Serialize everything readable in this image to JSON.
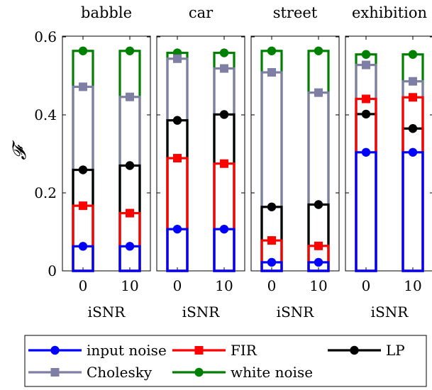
{
  "chart_data": {
    "type": "bar",
    "style": "stacked-outline-bars-with-markers",
    "ylabel": "𝓕",
    "ylim": [
      0,
      0.6
    ],
    "yticks": [
      "0",
      "0.2",
      "0.4",
      "0.6"
    ],
    "series_order": [
      "input noise",
      "FIR",
      "LP",
      "Cholesky",
      "white noise"
    ],
    "series": [
      {
        "name": "input noise",
        "color": "#0000ff",
        "marker": "circle"
      },
      {
        "name": "FIR",
        "color": "#ff0000",
        "marker": "square"
      },
      {
        "name": "LP",
        "color": "#000000",
        "marker": "circle"
      },
      {
        "name": "Cholesky",
        "color": "#7f7fa6",
        "marker": "square"
      },
      {
        "name": "white noise",
        "color": "#008000",
        "marker": "circle"
      }
    ],
    "panels": [
      {
        "title": "babble",
        "xlabel": "iSNR",
        "categories": [
          "0",
          "10"
        ],
        "values": {
          "input noise": [
            0.063,
            0.063
          ],
          "FIR": [
            0.167,
            0.148
          ],
          "LP": [
            0.259,
            0.27
          ],
          "Cholesky": [
            0.472,
            0.446
          ],
          "white noise": [
            0.564,
            0.564
          ]
        }
      },
      {
        "title": "car",
        "xlabel": "iSNR",
        "categories": [
          "0",
          "10"
        ],
        "values": {
          "input noise": [
            0.107,
            0.107
          ],
          "FIR": [
            0.289,
            0.275
          ],
          "LP": [
            0.386,
            0.401
          ],
          "Cholesky": [
            0.544,
            0.519
          ],
          "white noise": [
            0.559,
            0.559
          ]
        }
      },
      {
        "title": "street",
        "xlabel": "iSNR",
        "categories": [
          "0",
          "10"
        ],
        "values": {
          "input noise": [
            0.022,
            0.022
          ],
          "FIR": [
            0.078,
            0.064
          ],
          "LP": [
            0.164,
            0.17
          ],
          "Cholesky": [
            0.509,
            0.457
          ],
          "white noise": [
            0.564,
            0.564
          ]
        }
      },
      {
        "title": "exhibition",
        "xlabel": "iSNR",
        "categories": [
          "0",
          "10"
        ],
        "values": {
          "input noise": [
            0.304,
            0.304
          ],
          "FIR": [
            0.441,
            0.445
          ],
          "LP": [
            0.402,
            0.365
          ],
          "Cholesky": [
            0.528,
            0.486
          ],
          "white noise": [
            0.555,
            0.555
          ]
        }
      }
    ],
    "legend": {
      "placement": "bottom",
      "entries": [
        "input noise",
        "FIR",
        "LP",
        "Cholesky",
        "white noise"
      ]
    }
  }
}
